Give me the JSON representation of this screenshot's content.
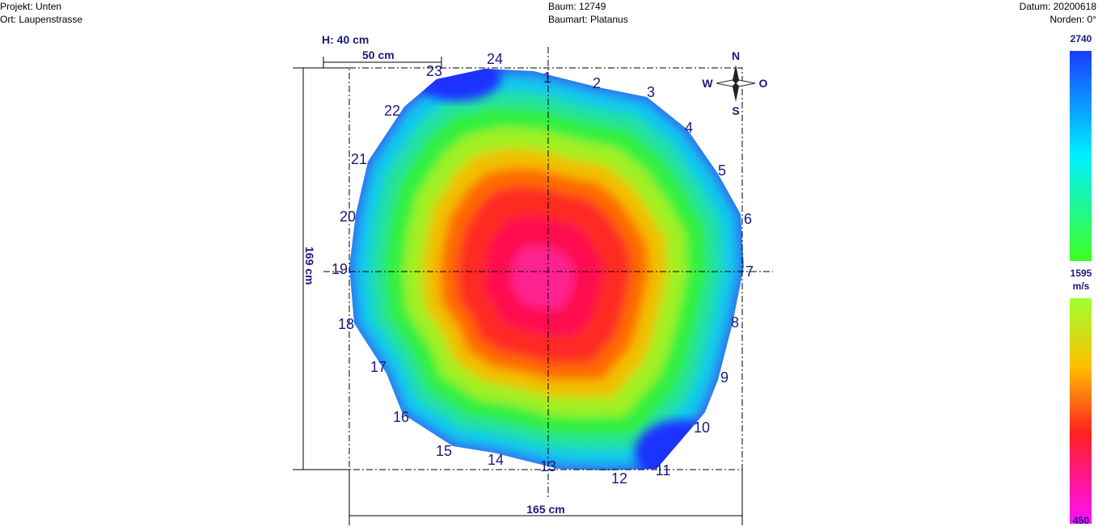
{
  "header": {
    "project": "Projekt: Unten",
    "location": "Ort: Laupenstrasse",
    "tree": "Baum: 12749",
    "species": "Baumart: Platanus",
    "date": "Datum: 20200618",
    "north": "Norden: 0°"
  },
  "dimensions": {
    "height": "H: 40 cm",
    "scale": "50 cm",
    "depth": "169 cm",
    "width": "165 cm"
  },
  "compass": {
    "n": "N",
    "e": "O",
    "s": "S",
    "w": "W"
  },
  "sensors": [
    "1",
    "2",
    "3",
    "4",
    "5",
    "6",
    "7",
    "8",
    "9",
    "10",
    "11",
    "12",
    "13",
    "14",
    "15",
    "16",
    "17",
    "18",
    "19",
    "20",
    "21",
    "22",
    "23",
    "24"
  ],
  "color_scale": {
    "max": "2740",
    "mid": "1595",
    "unit": "m/s",
    "min": "450"
  }
}
